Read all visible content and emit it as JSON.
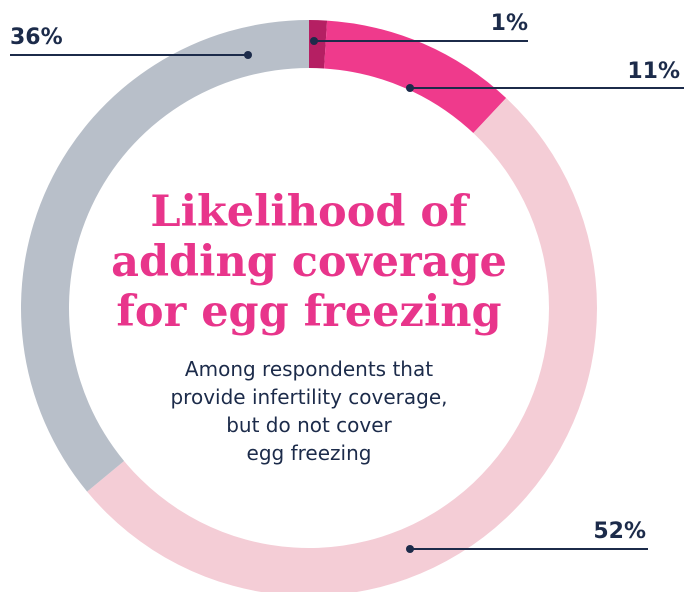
{
  "chart_data": {
    "type": "pie",
    "style": "donut",
    "title": [
      "Likelihood of",
      "adding coverage",
      "for egg freezing"
    ],
    "subtitle": [
      "Among respondents that",
      "provide infertility coverage,",
      "but do not cover",
      "egg freezing"
    ],
    "slices": [
      {
        "value": 1,
        "label": "1%",
        "color": "#b51f63"
      },
      {
        "value": 11,
        "label": "11%",
        "color": "#ef3a8c"
      },
      {
        "value": 52,
        "label": "52%",
        "color": "#f4cdd6"
      },
      {
        "value": 36,
        "label": "36%",
        "color": "#b8bfc9"
      }
    ],
    "title_color": "#e8358b",
    "text_color": "#1c2b4a"
  }
}
